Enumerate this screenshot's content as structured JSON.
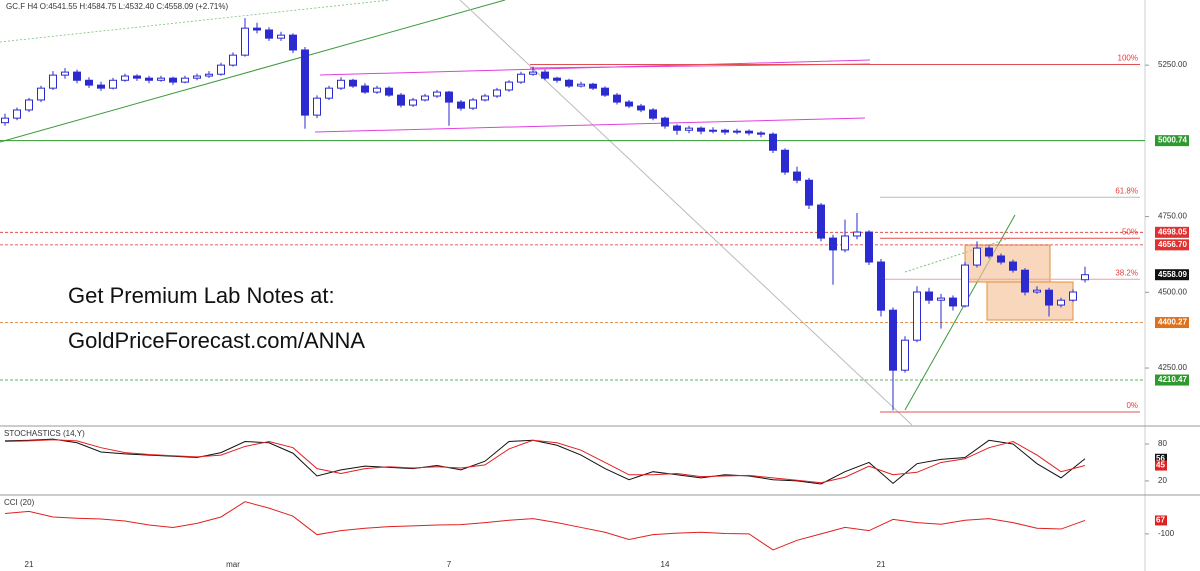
{
  "chart_data": [
    {
      "type": "candlestick",
      "title": "GC.F  H4  O:4541.55  H:4584.75  L:4532.40  C:4558.09  (+2.71%)",
      "annotations": [
        "Get Premium Lab Notes at:",
        "GoldPriceForecast.com/ANNA"
      ],
      "categories": [
        null,
        null,
        "21",
        null,
        null,
        null,
        null,
        null,
        null,
        null,
        null,
        null,
        null,
        null,
        null,
        null,
        null,
        null,
        null,
        "mar",
        null,
        null,
        null,
        null,
        null,
        null,
        null,
        null,
        null,
        null,
        null,
        null,
        null,
        null,
        null,
        null,
        null,
        "7",
        null,
        null,
        null,
        null,
        null,
        null,
        null,
        null,
        null,
        null,
        null,
        null,
        null,
        null,
        null,
        null,
        null,
        "14",
        null,
        null,
        null,
        null,
        null,
        null,
        null,
        null,
        null,
        null,
        null,
        null,
        null,
        null,
        null,
        null,
        null,
        "21",
        null,
        null,
        null,
        null,
        null,
        null,
        null,
        null,
        null,
        null,
        null,
        null,
        null,
        null,
        null,
        null,
        null
      ],
      "candles": [
        [
          5060,
          5090,
          5050,
          5075
        ],
        [
          5075,
          5110,
          5068,
          5102
        ],
        [
          5102,
          5142,
          5095,
          5135
        ],
        [
          5135,
          5182,
          5128,
          5174
        ],
        [
          5174,
          5230,
          5168,
          5217
        ],
        [
          5217,
          5240,
          5205,
          5227
        ],
        [
          5227,
          5235,
          5190,
          5200
        ],
        [
          5200,
          5210,
          5175,
          5184
        ],
        [
          5184,
          5195,
          5165,
          5174
        ],
        [
          5174,
          5208,
          5170,
          5200
        ],
        [
          5200,
          5222,
          5195,
          5214
        ],
        [
          5214,
          5220,
          5198,
          5207
        ],
        [
          5207,
          5215,
          5190,
          5200
        ],
        [
          5200,
          5215,
          5195,
          5207
        ],
        [
          5207,
          5212,
          5185,
          5194
        ],
        [
          5194,
          5215,
          5190,
          5207
        ],
        [
          5207,
          5222,
          5200,
          5214
        ],
        [
          5214,
          5230,
          5208,
          5220
        ],
        [
          5220,
          5258,
          5215,
          5250
        ],
        [
          5250,
          5292,
          5245,
          5283
        ],
        [
          5283,
          5405,
          5278,
          5372
        ],
        [
          5372,
          5390,
          5355,
          5366
        ],
        [
          5366,
          5375,
          5330,
          5339
        ],
        [
          5339,
          5360,
          5330,
          5349
        ],
        [
          5349,
          5355,
          5290,
          5300
        ],
        [
          5300,
          5310,
          5040,
          5085
        ],
        [
          5085,
          5150,
          5075,
          5141
        ],
        [
          5141,
          5182,
          5135,
          5174
        ],
        [
          5174,
          5210,
          5168,
          5200
        ],
        [
          5200,
          5205,
          5175,
          5181
        ],
        [
          5181,
          5190,
          5155,
          5161
        ],
        [
          5161,
          5182,
          5155,
          5174
        ],
        [
          5174,
          5180,
          5145,
          5151
        ],
        [
          5151,
          5158,
          5110,
          5118
        ],
        [
          5118,
          5142,
          5112,
          5135
        ],
        [
          5135,
          5155,
          5130,
          5148
        ],
        [
          5148,
          5168,
          5142,
          5161
        ],
        [
          5161,
          5165,
          5050,
          5128
        ],
        [
          5128,
          5135,
          5100,
          5108
        ],
        [
          5108,
          5142,
          5102,
          5135
        ],
        [
          5135,
          5155,
          5130,
          5148
        ],
        [
          5148,
          5175,
          5142,
          5168
        ],
        [
          5168,
          5200,
          5162,
          5194
        ],
        [
          5194,
          5228,
          5188,
          5220
        ],
        [
          5220,
          5245,
          5215,
          5227
        ],
        [
          5227,
          5235,
          5200,
          5207
        ],
        [
          5207,
          5212,
          5192,
          5200
        ],
        [
          5200,
          5205,
          5175,
          5181
        ],
        [
          5181,
          5195,
          5176,
          5187
        ],
        [
          5187,
          5192,
          5168,
          5174
        ],
        [
          5174,
          5180,
          5145,
          5151
        ],
        [
          5151,
          5158,
          5120,
          5128
        ],
        [
          5128,
          5135,
          5108,
          5115
        ],
        [
          5115,
          5122,
          5095,
          5102
        ],
        [
          5102,
          5108,
          5068,
          5075
        ],
        [
          5075,
          5080,
          5040,
          5049
        ],
        [
          5049,
          5055,
          5020,
          5035
        ],
        [
          5035,
          5050,
          5025,
          5042
        ],
        [
          5042,
          5048,
          5022,
          5032
        ],
        [
          5032,
          5045,
          5025,
          5035
        ],
        [
          5035,
          5040,
          5020,
          5029
        ],
        [
          5029,
          5040,
          5022,
          5032
        ],
        [
          5032,
          5038,
          5018,
          5026
        ],
        [
          5026,
          5032,
          5012,
          5022
        ],
        [
          5022,
          5028,
          4960,
          4969
        ],
        [
          4969,
          4975,
          4888,
          4897
        ],
        [
          4897,
          4915,
          4860,
          4870
        ],
        [
          4870,
          4878,
          4775,
          4788
        ],
        [
          4788,
          4795,
          4668,
          4679
        ],
        [
          4679,
          4690,
          4525,
          4640
        ],
        [
          4640,
          4740,
          4632,
          4686
        ],
        [
          4686,
          4762,
          4675,
          4699
        ],
        [
          4699,
          4705,
          4590,
          4600
        ],
        [
          4600,
          4610,
          4420,
          4441
        ],
        [
          4441,
          4450,
          4110,
          4243
        ],
        [
          4243,
          4355,
          4235,
          4342
        ],
        [
          4342,
          4520,
          4335,
          4501
        ],
        [
          4501,
          4515,
          4462,
          4474
        ],
        [
          4474,
          4495,
          4380,
          4481
        ],
        [
          4481,
          4490,
          4440,
          4455
        ],
        [
          4455,
          4600,
          4450,
          4590
        ],
        [
          4590,
          4668,
          4582,
          4646
        ],
        [
          4646,
          4655,
          4612,
          4620
        ],
        [
          4620,
          4628,
          4592,
          4600
        ],
        [
          4600,
          4608,
          4565,
          4573
        ],
        [
          4573,
          4580,
          4490,
          4501
        ],
        [
          4501,
          4520,
          4495,
          4507
        ],
        [
          4507,
          4515,
          4420,
          4458
        ],
        [
          4458,
          4482,
          4450,
          4474
        ],
        [
          4474,
          4510,
          4468,
          4501
        ],
        [
          4541.55,
          4584.75,
          4532.4,
          4558.09
        ]
      ],
      "up_color": "#ffffff",
      "down_color": "#2b2bd0",
      "wick_color": "#2b2bd0",
      "ylim": [
        4062,
        5465
      ],
      "yticks": [
        {
          "value": 4250,
          "label": "4250.00"
        },
        {
          "value": 4500,
          "label": "4500.00"
        },
        {
          "value": 4750,
          "label": "4750.00"
        },
        {
          "value": 5250,
          "label": "5250.00"
        }
      ],
      "levels": [
        {
          "value": 5000.74,
          "color": "#2e9a2e",
          "style": "solid"
        },
        {
          "value": 4698.05,
          "color": "#e03030",
          "style": "dashed"
        },
        {
          "value": 4656.7,
          "label": "4656.70",
          "color": "#e03030",
          "style": "dashed"
        },
        {
          "value": 4558.09,
          "color": "#111111",
          "style": "none"
        },
        {
          "value": 4400.27,
          "color": "#e0701a",
          "style": "dashed"
        },
        {
          "value": 4210.47,
          "color": "#2e9a2e",
          "style": "dashed"
        }
      ],
      "fibonacci": [
        {
          "label": "100%",
          "value": 5252,
          "color": "#e05050"
        },
        {
          "label": "61.8%",
          "value": 4814,
          "color": "#bbbbbb"
        },
        {
          "label": "50%",
          "value": 4678.5,
          "color": "#e05050"
        },
        {
          "label": "38.2%",
          "value": 4543,
          "color": "#f0a0a0"
        },
        {
          "label": "0%",
          "value": 4105,
          "color": "#e05050"
        }
      ]
    },
    {
      "type": "line",
      "title": "STOCHASTICS (14,Y)",
      "x": [
        0,
        2,
        4,
        6,
        8,
        10,
        12,
        14,
        16,
        18,
        20,
        22,
        24,
        26,
        28,
        30,
        32,
        34,
        36,
        38,
        40,
        42,
        44,
        46,
        48,
        50,
        52,
        54,
        56,
        58,
        60,
        62,
        64,
        66,
        68,
        70,
        72,
        74,
        76,
        78,
        80,
        82,
        84,
        86,
        88,
        90
      ],
      "series": [
        {
          "color": "#111111",
          "values": [
            85,
            86,
            88,
            82,
            67,
            64,
            62,
            60,
            58,
            66,
            84,
            82,
            65,
            28,
            38,
            44,
            42,
            40,
            45,
            38,
            52,
            84,
            86,
            78,
            62,
            40,
            22,
            35,
            30,
            25,
            30,
            28,
            22,
            20,
            15,
            35,
            50,
            16,
            48,
            55,
            58,
            86,
            80,
            48,
            25,
            56
          ]
        },
        {
          "color": "#e02020",
          "values": [
            84,
            85,
            87,
            85,
            74,
            66,
            63,
            61,
            59,
            62,
            76,
            84,
            74,
            40,
            32,
            40,
            43,
            41,
            43,
            41,
            46,
            72,
            86,
            82,
            70,
            50,
            30,
            30,
            32,
            27,
            28,
            29,
            25,
            21,
            17,
            26,
            44,
            30,
            34,
            50,
            56,
            74,
            84,
            62,
            35,
            45
          ]
        }
      ],
      "ylim": [
        2,
        106
      ],
      "yticks": [
        20,
        80
      ]
    },
    {
      "type": "line",
      "title": "CCI (20)",
      "x": [
        0,
        2,
        4,
        6,
        8,
        10,
        12,
        14,
        16,
        18,
        20,
        22,
        24,
        26,
        28,
        30,
        32,
        34,
        36,
        38,
        40,
        42,
        44,
        46,
        48,
        50,
        52,
        54,
        56,
        58,
        60,
        62,
        64,
        66,
        68,
        70,
        72,
        74,
        76,
        78,
        80,
        82,
        84,
        86,
        88,
        90
      ],
      "series": [
        {
          "color": "#e02020",
          "values": [
            154,
            180,
            110,
            95,
            85,
            60,
            10,
            -20,
            30,
            110,
            300,
            220,
            120,
            -110,
            -60,
            -30,
            -10,
            0,
            10,
            15,
            40,
            70,
            90,
            40,
            -20,
            -80,
            -170,
            -110,
            -90,
            -80,
            -95,
            -100,
            -300,
            -180,
            -100,
            -20,
            -60,
            80,
            40,
            20,
            70,
            90,
            40,
            -30,
            -40,
            67
          ]
        }
      ],
      "ylim": [
        -487,
        346
      ],
      "yticks": [
        -100
      ]
    }
  ]
}
